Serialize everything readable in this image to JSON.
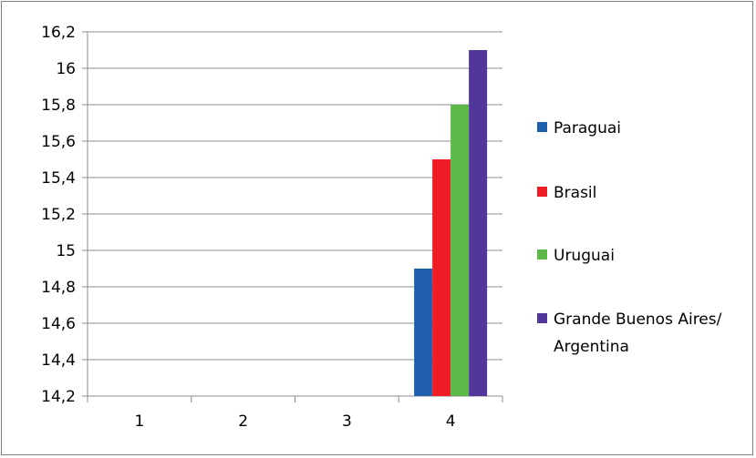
{
  "chart_data": {
    "type": "bar",
    "categories": [
      "1",
      "2",
      "3",
      "4"
    ],
    "series": [
      {
        "name": "Paraguai",
        "color": "#1f5fae",
        "values": [
          null,
          null,
          null,
          14.9
        ]
      },
      {
        "name": "Brasil",
        "color": "#ee1c25",
        "values": [
          null,
          null,
          null,
          15.5
        ]
      },
      {
        "name": "Uruguai",
        "color": "#5cb947",
        "values": [
          null,
          null,
          null,
          15.8
        ]
      },
      {
        "name": "Grande Buenos Aires/\nArgentina",
        "color": "#51379b",
        "values": [
          null,
          null,
          null,
          16.1
        ]
      }
    ],
    "ylim": [
      14.2,
      16.2
    ],
    "yticks": [
      "14,2",
      "14,4",
      "14,6",
      "14,8",
      "15",
      "15,2",
      "15,4",
      "15,6",
      "15,8",
      "16",
      "16,2"
    ],
    "grid": true,
    "legend_position": "right",
    "title": "",
    "xlabel": "",
    "ylabel": ""
  }
}
